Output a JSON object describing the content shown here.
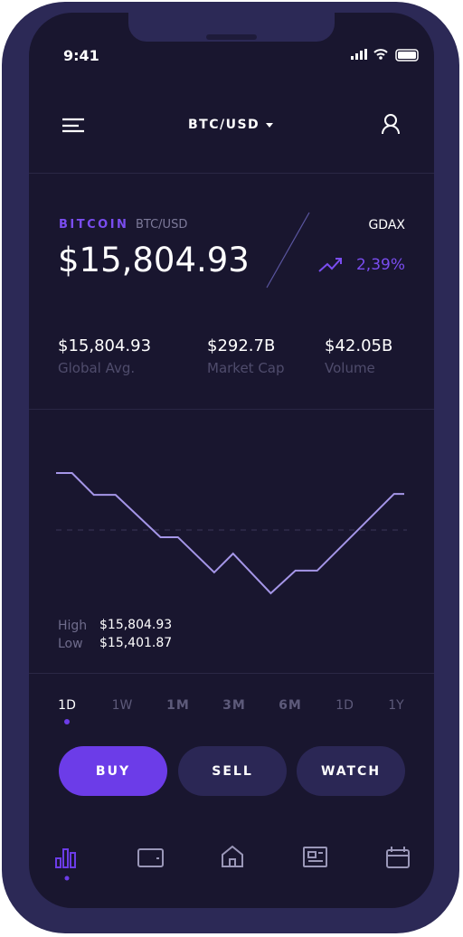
{
  "status": {
    "time": "9:41"
  },
  "header": {
    "pair": "BTC/USD"
  },
  "coin": {
    "name": "BITCOIN",
    "pair": "BTC/USD",
    "price": "$15,804.93",
    "exchange": "GDAX",
    "change": "2,39%"
  },
  "stats": [
    {
      "value": "$15,804.93",
      "label": "Global Avg."
    },
    {
      "value": "$292.7B",
      "label": "Market Cap"
    },
    {
      "value": "$42.05B",
      "label": "Volume"
    }
  ],
  "chart_data": {
    "type": "line",
    "color": "#a596e8",
    "x": [
      0,
      1.1,
      2.6,
      4.1,
      7.2,
      8.4,
      10.9,
      12.2,
      14.8,
      16.5,
      18.0,
      23.3,
      24
    ],
    "values": [
      15805,
      15805,
      15732,
      15732,
      15590,
      15590,
      15472,
      15535,
      15402,
      15478,
      15478,
      15735,
      15735
    ]
  },
  "range": {
    "high_label": "High",
    "high_value": "$15,804.93",
    "low_label": "Low",
    "low_value": "$15,401.87"
  },
  "periods": [
    "1D",
    "1W",
    "1M",
    "3M",
    "6M",
    "1D",
    "1Y"
  ],
  "buttons": [
    "BUY",
    "SELL",
    "WATCH"
  ]
}
